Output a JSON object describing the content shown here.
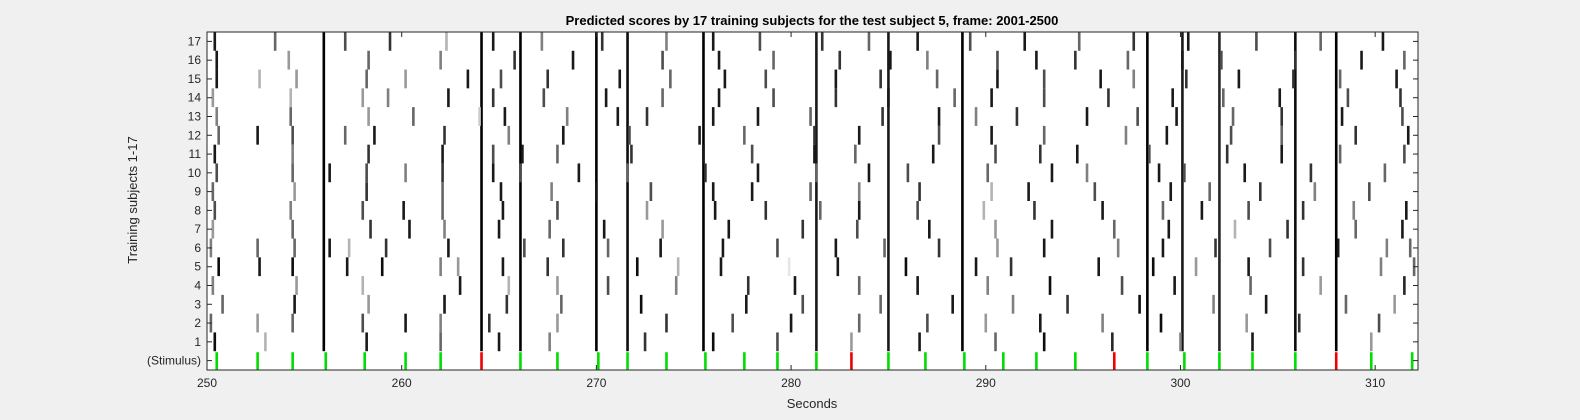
{
  "chart_data": {
    "type": "heatmap",
    "title": "Predicted scores by 17 training subjects for the test subject 5, frame: 2001-2500",
    "xlabel": "Seconds",
    "ylabel": "Training subjects 1-17",
    "xlim": [
      250,
      312.2
    ],
    "xticks": [
      250,
      260,
      270,
      280,
      290,
      300,
      310
    ],
    "yticklabels": [
      "(Stimulus)",
      "1",
      "2",
      "3",
      "4",
      "5",
      "6",
      "7",
      "8",
      "9",
      "10",
      "11",
      "12",
      "13",
      "14",
      "15",
      "16",
      "17"
    ],
    "grid": false,
    "colormap": "score intensity: white = 0 (no prediction), black = 1 (strong prediction)",
    "stimulus_colors": {
      "green": "#00dd00",
      "red": "#ee0000"
    },
    "stimulus": [
      {
        "t": 250.5,
        "color": "green"
      },
      {
        "t": 252.6,
        "color": "green"
      },
      {
        "t": 254.4,
        "color": "green"
      },
      {
        "t": 256.1,
        "color": "green"
      },
      {
        "t": 258.1,
        "color": "green"
      },
      {
        "t": 260.2,
        "color": "green"
      },
      {
        "t": 262.0,
        "color": "green"
      },
      {
        "t": 264.1,
        "color": "red"
      },
      {
        "t": 266.1,
        "color": "green"
      },
      {
        "t": 268.0,
        "color": "green"
      },
      {
        "t": 270.1,
        "color": "green"
      },
      {
        "t": 271.6,
        "color": "green"
      },
      {
        "t": 273.6,
        "color": "green"
      },
      {
        "t": 275.6,
        "color": "green"
      },
      {
        "t": 277.6,
        "color": "green"
      },
      {
        "t": 279.3,
        "color": "green"
      },
      {
        "t": 281.3,
        "color": "green"
      },
      {
        "t": 283.1,
        "color": "red"
      },
      {
        "t": 285.0,
        "color": "green"
      },
      {
        "t": 286.9,
        "color": "green"
      },
      {
        "t": 288.9,
        "color": "green"
      },
      {
        "t": 290.9,
        "color": "green"
      },
      {
        "t": 292.6,
        "color": "green"
      },
      {
        "t": 294.6,
        "color": "green"
      },
      {
        "t": 296.6,
        "color": "red"
      },
      {
        "t": 298.3,
        "color": "green"
      },
      {
        "t": 300.2,
        "color": "green"
      },
      {
        "t": 302.0,
        "color": "green"
      },
      {
        "t": 303.7,
        "color": "green"
      },
      {
        "t": 305.9,
        "color": "green"
      },
      {
        "t": 308.0,
        "color": "red"
      },
      {
        "t": 309.8,
        "color": "green"
      },
      {
        "t": 311.9,
        "color": "green"
      }
    ],
    "common_events": [
      {
        "t": 256.0,
        "score": 1.0
      },
      {
        "t": 264.1,
        "score": 1.0
      },
      {
        "t": 266.1,
        "score": 1.0
      },
      {
        "t": 270.0,
        "score": 1.0
      },
      {
        "t": 271.6,
        "score": 0.95
      },
      {
        "t": 275.5,
        "score": 1.0
      },
      {
        "t": 281.3,
        "score": 0.9
      },
      {
        "t": 285.0,
        "score": 0.9
      },
      {
        "t": 288.8,
        "score": 1.0
      },
      {
        "t": 298.3,
        "score": 1.0
      },
      {
        "t": 300.1,
        "score": 0.9
      },
      {
        "t": 302.0,
        "score": 0.85
      },
      {
        "t": 305.9,
        "score": 0.95
      },
      {
        "t": 308.0,
        "score": 1.0
      }
    ],
    "subject_events": [
      {
        "t": [
          250.4,
          253.0,
          258.2,
          262.0,
          265.0,
          267.6,
          272.5,
          276.0,
          279.3,
          283.1,
          286.6,
          290.5,
          293.0,
          296.5,
          300.0,
          303.7,
          309.8
        ],
        "scores": [
          0.95,
          0.3,
          0.9,
          0.6,
          0.9,
          0.5,
          0.8,
          0.95,
          0.7,
          0.4,
          0.9,
          0.6,
          0.95,
          0.85,
          0.5,
          0.9,
          0.4
        ]
      },
      {
        "t": [
          250.2,
          252.6,
          254.4,
          258.0,
          260.2,
          262.0,
          264.5,
          268.0,
          273.6,
          277.0,
          280.0,
          283.5,
          287.0,
          290.0,
          292.8,
          296.0,
          299.0,
          303.4,
          306.1,
          310.2
        ],
        "scores": [
          0.6,
          0.4,
          0.6,
          0.7,
          0.9,
          0.5,
          0.8,
          0.4,
          0.8,
          0.7,
          0.9,
          0.6,
          0.7,
          0.4,
          0.9,
          0.5,
          0.95,
          0.4,
          0.8,
          0.7
        ]
      },
      {
        "t": [
          250.8,
          254.5,
          258.3,
          262.2,
          265.4,
          268.2,
          272.3,
          277.7,
          280.6,
          284.6,
          288.3,
          291.4,
          294.2,
          297.9,
          301.7,
          304.4,
          308.5,
          311.0
        ],
        "scores": [
          0.6,
          0.9,
          0.4,
          0.9,
          0.8,
          0.6,
          0.95,
          0.9,
          0.7,
          0.6,
          0.9,
          0.5,
          0.8,
          0.95,
          0.5,
          0.9,
          0.6,
          0.4
        ]
      },
      {
        "t": [
          250.3,
          254.6,
          258.0,
          263.0,
          265.5,
          268.0,
          270.6,
          274.1,
          277.8,
          280.2,
          283.5,
          286.5,
          290.1,
          293.3,
          297.0,
          299.7,
          303.6,
          307.2,
          311.5
        ],
        "scores": [
          0.5,
          0.4,
          0.3,
          0.9,
          0.3,
          0.4,
          0.7,
          0.5,
          0.8,
          0.9,
          0.6,
          0.9,
          0.5,
          0.95,
          0.7,
          0.9,
          0.6,
          0.4,
          0.85
        ]
      },
      {
        "t": [
          250.6,
          252.7,
          254.4,
          257.2,
          259.0,
          262.0,
          262.9,
          265.2,
          267.5,
          272.1,
          274.2,
          276.4,
          279.9,
          282.4,
          285.9,
          289.5,
          291.3,
          295.8,
          298.6,
          300.8,
          303.5,
          306.3,
          310.3,
          312.0
        ],
        "scores": [
          0.95,
          0.9,
          0.95,
          0.9,
          0.95,
          0.5,
          0.4,
          0.9,
          0.8,
          0.95,
          0.3,
          0.9,
          0.1,
          0.9,
          0.95,
          0.9,
          0.8,
          0.9,
          0.95,
          0.4,
          0.9,
          0.8,
          0.5,
          0.6
        ]
      },
      {
        "t": [
          250.2,
          252.6,
          254.5,
          256.3,
          257.3,
          259.2,
          262.4,
          266.3,
          268.3,
          270.6,
          273.3,
          276.5,
          279.3,
          282.3,
          284.8,
          287.6,
          290.6,
          293.0,
          296.8,
          299.1,
          301.8,
          304.6,
          308.1,
          310.6,
          311.8
        ],
        "scores": [
          0.5,
          0.6,
          0.6,
          0.9,
          0.3,
          0.8,
          0.9,
          0.7,
          0.8,
          0.6,
          0.9,
          0.9,
          0.7,
          0.9,
          0.6,
          0.8,
          0.4,
          0.9,
          0.5,
          0.9,
          0.8,
          0.7,
          0.9,
          0.5,
          0.6
        ]
      },
      {
        "t": [
          250.3,
          254.4,
          258.4,
          260.4,
          262.2,
          265.0,
          267.6,
          270.4,
          273.4,
          276.8,
          280.6,
          283.4,
          287.1,
          290.5,
          293.4,
          296.6,
          299.4,
          302.8,
          305.5,
          309.0,
          311.4
        ],
        "scores": [
          0.4,
          0.6,
          0.8,
          0.9,
          0.5,
          0.9,
          0.6,
          0.9,
          0.4,
          0.9,
          0.8,
          0.7,
          0.9,
          0.4,
          0.9,
          0.6,
          0.9,
          0.3,
          0.8,
          0.6,
          0.9
        ]
      },
      {
        "t": [
          250.4,
          254.3,
          258.0,
          260.1,
          262.1,
          265.2,
          268.0,
          272.6,
          276.1,
          278.7,
          281.5,
          283.5,
          286.5,
          289.9,
          292.5,
          296.0,
          299.1,
          301.1,
          303.5,
          306.3,
          308.9,
          311.6
        ],
        "scores": [
          0.7,
          0.5,
          0.7,
          0.9,
          0.6,
          0.9,
          0.7,
          0.4,
          0.9,
          0.8,
          0.6,
          0.9,
          0.7,
          0.3,
          0.8,
          0.9,
          0.6,
          0.9,
          0.7,
          0.8,
          0.5,
          0.9
        ]
      },
      {
        "t": [
          250.3,
          254.5,
          258.2,
          262.1,
          265.1,
          267.7,
          270.0,
          272.8,
          276.0,
          278.0,
          281.0,
          283.5,
          286.6,
          290.3,
          292.2,
          295.6,
          299.5,
          301.5,
          304.1,
          306.9,
          309.7
        ],
        "scores": [
          0.6,
          0.4,
          0.8,
          0.6,
          0.9,
          0.5,
          0.9,
          0.7,
          0.9,
          0.9,
          0.6,
          0.5,
          0.8,
          0.3,
          0.9,
          0.7,
          0.9,
          0.6,
          0.8,
          0.5,
          0.7
        ]
      },
      {
        "t": [
          250.5,
          254.4,
          256.3,
          258.2,
          260.2,
          262.1,
          264.7,
          266.1,
          269.1,
          271.6,
          275.6,
          278.3,
          281.3,
          284.0,
          286.0,
          290.1,
          293.4,
          295.2,
          298.9,
          300.2,
          303.3,
          306.7,
          310.5
        ],
        "scores": [
          0.7,
          0.6,
          0.9,
          0.7,
          0.5,
          0.8,
          0.9,
          0.7,
          0.9,
          0.6,
          0.8,
          0.9,
          0.6,
          0.9,
          0.7,
          0.6,
          0.9,
          0.5,
          0.9,
          0.7,
          0.9,
          0.8,
          0.6
        ]
      },
      {
        "t": [
          250.4,
          254.4,
          258.3,
          262.1,
          264.7,
          266.2,
          268.0,
          271.8,
          275.5,
          278.0,
          281.2,
          283.3,
          287.3,
          290.5,
          292.8,
          294.7,
          298.4,
          302.4,
          305.2,
          308.2,
          311.5
        ],
        "scores": [
          0.9,
          0.5,
          0.8,
          0.9,
          0.7,
          0.9,
          0.6,
          0.8,
          0.9,
          0.7,
          0.9,
          0.6,
          0.9,
          0.7,
          0.8,
          0.9,
          0.7,
          0.8,
          0.9,
          0.6,
          0.7
        ]
      },
      {
        "t": [
          250.6,
          252.6,
          254.4,
          257.1,
          258.6,
          262.2,
          265.5,
          268.3,
          271.7,
          275.3,
          277.6,
          281.2,
          283.5,
          287.6,
          290.3,
          293.0,
          297.2,
          299.3,
          302.6,
          305.2,
          309.0,
          311.7
        ],
        "scores": [
          0.6,
          0.9,
          0.7,
          0.6,
          0.9,
          0.8,
          0.5,
          0.9,
          0.7,
          0.9,
          0.6,
          0.8,
          0.9,
          0.7,
          0.9,
          0.6,
          0.5,
          0.9,
          0.7,
          0.6,
          0.8,
          0.9
        ]
      },
      {
        "t": [
          250.5,
          254.3,
          258.3,
          260.6,
          264.0,
          265.3,
          268.5,
          271.1,
          272.6,
          276.0,
          278.3,
          281.0,
          284.7,
          287.6,
          289.5,
          291.6,
          295.2,
          297.8,
          299.8,
          302.7,
          305.2,
          308.3,
          311.4
        ],
        "scores": [
          0.5,
          0.6,
          0.4,
          0.6,
          0.2,
          0.9,
          0.5,
          0.9,
          0.8,
          0.9,
          0.9,
          0.6,
          0.8,
          0.9,
          0.5,
          0.8,
          0.9,
          0.7,
          0.9,
          0.6,
          0.8,
          0.9,
          0.7
        ]
      },
      {
        "t": [
          250.3,
          254.3,
          258.0,
          259.3,
          262.4,
          264.7,
          267.3,
          270.5,
          273.4,
          276.3,
          279.1,
          282.3,
          285.0,
          288.4,
          290.3,
          293.0,
          296.3,
          299.6,
          302.2,
          305.1,
          308.6,
          311.3
        ],
        "scores": [
          0.4,
          0.3,
          0.4,
          0.5,
          0.9,
          0.8,
          0.7,
          0.9,
          0.6,
          0.9,
          0.7,
          0.8,
          0.9,
          0.6,
          0.9,
          0.7,
          0.8,
          0.9,
          0.6,
          0.9,
          0.7,
          0.8
        ]
      },
      {
        "t": [
          250.5,
          252.7,
          254.6,
          258.2,
          260.2,
          263.4,
          265.1,
          267.5,
          271.2,
          273.8,
          276.6,
          278.7,
          282.3,
          284.6,
          287.5,
          290.6,
          293.0,
          295.9,
          297.6,
          300.3,
          303.0,
          305.8,
          308.2,
          311.1
        ],
        "scores": [
          0.9,
          0.3,
          0.4,
          0.6,
          0.4,
          0.9,
          0.7,
          0.8,
          0.9,
          0.6,
          0.9,
          0.7,
          0.9,
          0.8,
          0.6,
          0.9,
          0.7,
          0.9,
          0.5,
          0.8,
          0.9,
          0.8,
          0.6,
          0.9
        ]
      },
      {
        "t": [
          250.5,
          254.2,
          258.3,
          262.0,
          265.8,
          268.8,
          273.4,
          276.3,
          279.1,
          282.5,
          285.1,
          287.0,
          290.6,
          292.6,
          294.6,
          297.3,
          300.1,
          302.1,
          305.9,
          309.3,
          311.5
        ],
        "scores": [
          0.9,
          0.4,
          0.6,
          0.5,
          0.8,
          0.9,
          0.7,
          0.9,
          0.6,
          0.8,
          0.9,
          0.5,
          0.7,
          0.9,
          0.8,
          0.6,
          0.9,
          0.7,
          0.8,
          0.9,
          0.6
        ]
      },
      {
        "t": [
          250.4,
          253.5,
          257.1,
          259.4,
          262.3,
          264.7,
          267.2,
          270.3,
          273.6,
          276.0,
          278.4,
          281.6,
          284.0,
          286.5,
          289.2,
          292.0,
          294.8,
          297.6,
          300.4,
          303.9,
          307.2,
          310.4
        ],
        "scores": [
          0.9,
          0.6,
          0.7,
          0.8,
          0.3,
          0.9,
          0.5,
          0.8,
          0.5,
          0.9,
          0.7,
          0.8,
          0.6,
          0.9,
          0.7,
          0.9,
          0.6,
          0.8,
          0.9,
          0.7,
          0.6,
          0.9
        ]
      }
    ]
  }
}
